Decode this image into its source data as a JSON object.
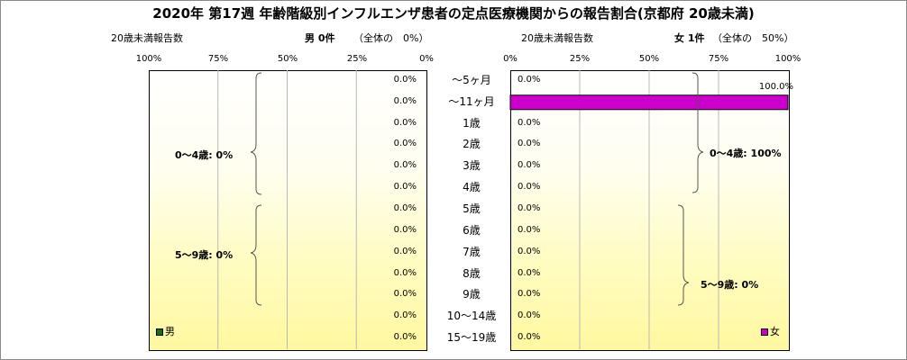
{
  "title": "2020年 第17週 年齢階級別インフルエンザ患者の定点医療機関からの報告割合(京都府 20歳未満)",
  "left_header": {
    "label": "20歳未満報告数",
    "sex_count": "男 0件",
    "share": "（全体の　0%）"
  },
  "right_header": {
    "label": "20歳未満報告数",
    "sex_count": "女 1件",
    "share": "（全体の　50%）"
  },
  "male_axis_ticks": [
    "100%",
    "75%",
    "50%",
    "25%",
    "0%"
  ],
  "female_axis_ticks": [
    "0%",
    "25%",
    "50%",
    "75%",
    "100%"
  ],
  "male_group_labels": [
    "0～4歳: 0%",
    "5～9歳: 0%"
  ],
  "female_group_labels": [
    "0～4歳: 100%",
    "5～9歳: 0%"
  ],
  "legend": {
    "male": "男",
    "female": "女"
  },
  "colors": {
    "male": "#1a6b1a",
    "female": "#cc00cc",
    "bar_border": "#000000"
  },
  "chart_data": {
    "type": "bar",
    "orientation": "horizontal",
    "layout": "population-pyramid",
    "categories": [
      "～5ヶ月",
      "～11ヶ月",
      "1歳",
      "2歳",
      "3歳",
      "4歳",
      "5歳",
      "6歳",
      "7歳",
      "8歳",
      "9歳",
      "10～14歳",
      "15～19歳"
    ],
    "series": [
      {
        "name": "男",
        "values": [
          0,
          0,
          0,
          0,
          0,
          0,
          0,
          0,
          0,
          0,
          0,
          0,
          0
        ],
        "labels": [
          "0.0%",
          "0.0%",
          "0.0%",
          "0.0%",
          "0.0%",
          "0.0%",
          "0.0%",
          "0.0%",
          "0.0%",
          "0.0%",
          "0.0%",
          "0.0%",
          "0.0%"
        ]
      },
      {
        "name": "女",
        "values": [
          0,
          100,
          0,
          0,
          0,
          0,
          0,
          0,
          0,
          0,
          0,
          0,
          0
        ],
        "labels": [
          "0.0%",
          "100.0%",
          "0.0%",
          "0.0%",
          "0.0%",
          "0.0%",
          "0.0%",
          "0.0%",
          "0.0%",
          "0.0%",
          "0.0%",
          "0.0%",
          "0.0%"
        ]
      }
    ],
    "xlim": [
      0,
      100
    ],
    "grid": true
  }
}
